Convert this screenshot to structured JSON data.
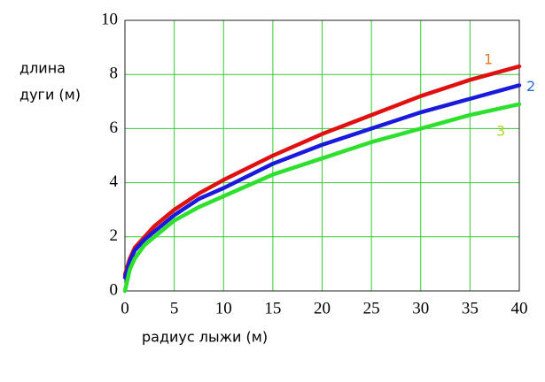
{
  "chart_data": {
    "type": "line",
    "xlabel": "радиус лыжи (м)",
    "ylabel": [
      "длина",
      "дуги (м)"
    ],
    "x": [
      0,
      0.5,
      1,
      2,
      3,
      5,
      7.5,
      10,
      15,
      20,
      25,
      30,
      35,
      40
    ],
    "series": [
      {
        "name": "1",
        "color": "#e01010",
        "label_color": "#e07a20",
        "values": [
          0.6,
          1.2,
          1.6,
          2.0,
          2.4,
          3.0,
          3.6,
          4.1,
          5.0,
          5.8,
          6.5,
          7.2,
          7.8,
          8.3
        ]
      },
      {
        "name": "2",
        "color": "#1a1adc",
        "label_color": "#2a6ad0",
        "values": [
          0.5,
          1.1,
          1.5,
          1.9,
          2.2,
          2.8,
          3.4,
          3.8,
          4.7,
          5.4,
          6.0,
          6.6,
          7.1,
          7.6
        ]
      },
      {
        "name": "3",
        "color": "#2ee02e",
        "label_color": "#b4d420",
        "values": [
          0,
          0.8,
          1.2,
          1.7,
          2.0,
          2.6,
          3.1,
          3.5,
          4.3,
          4.9,
          5.5,
          6.0,
          6.5,
          6.9
        ]
      }
    ],
    "xlim": [
      0,
      40
    ],
    "xticks": [
      0,
      5,
      10,
      15,
      20,
      25,
      30,
      35,
      40
    ],
    "ylim": [
      0,
      10
    ],
    "yticks": [
      0,
      2,
      4,
      6,
      8,
      10
    ],
    "grid": true,
    "grid_color": "#33cc33"
  }
}
